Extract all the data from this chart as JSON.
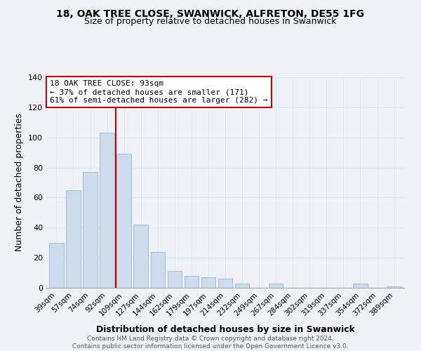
{
  "title_line1": "18, OAK TREE CLOSE, SWANWICK, ALFRETON, DE55 1FG",
  "title_line2": "Size of property relative to detached houses in Swanwick",
  "xlabel": "Distribution of detached houses by size in Swanwick",
  "ylabel": "Number of detached properties",
  "bar_labels": [
    "39sqm",
    "57sqm",
    "74sqm",
    "92sqm",
    "109sqm",
    "127sqm",
    "144sqm",
    "162sqm",
    "179sqm",
    "197sqm",
    "214sqm",
    "232sqm",
    "249sqm",
    "267sqm",
    "284sqm",
    "302sqm",
    "319sqm",
    "337sqm",
    "354sqm",
    "372sqm",
    "389sqm"
  ],
  "bar_values": [
    30,
    65,
    77,
    103,
    89,
    42,
    24,
    11,
    8,
    7,
    6,
    3,
    0,
    3,
    0,
    0,
    0,
    0,
    3,
    0,
    1
  ],
  "bar_color": "#ccdcec",
  "bar_edge_color": "#a8c0d4",
  "vline_x": 3.5,
  "vline_color": "#cc0000",
  "annotation_line1": "18 OAK TREE CLOSE: 93sqm",
  "annotation_line2": "← 37% of detached houses are smaller (171)",
  "annotation_line3": "61% of semi-detached houses are larger (282) →",
  "annotation_box_color": "white",
  "annotation_box_edge_color": "#cc0000",
  "ylim": [
    0,
    140
  ],
  "yticks": [
    0,
    20,
    40,
    60,
    80,
    100,
    120,
    140
  ],
  "footer_line1": "Contains HM Land Registry data © Crown copyright and database right 2024.",
  "footer_line2": "Contains public sector information licensed under the Open Government Licence v3.0.",
  "background_color": "#eef2f7",
  "grid_color": "#dce8f0",
  "title1_fontsize": 10,
  "title2_fontsize": 9
}
